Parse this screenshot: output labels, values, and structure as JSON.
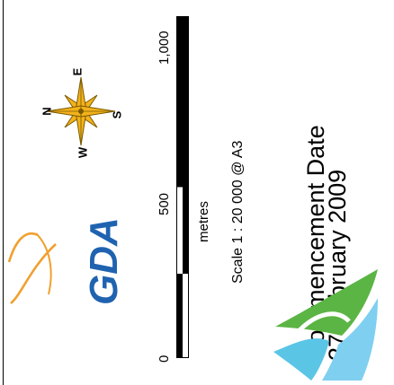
{
  "map_footer": {
    "logo_text": "GDA",
    "compass": {
      "north": "N",
      "south": "S",
      "east": "E",
      "west": "W"
    },
    "scale_bar": {
      "ticks": [
        "0",
        "500",
        "1,000"
      ],
      "tick_values": [
        0,
        500,
        1000
      ],
      "units": "metres"
    },
    "scale_text": "Scale 1 : 20 000 @ A3",
    "commencement_title": "Commencement Date",
    "commencement_date": "27 February 2009",
    "colors": {
      "gda_blue": "#1f63b0",
      "gda_orange": "#f0a030",
      "compass_gold": "#f3b21c",
      "logo_green": "#5bb544",
      "logo_light_blue": "#5bc5e6"
    }
  }
}
